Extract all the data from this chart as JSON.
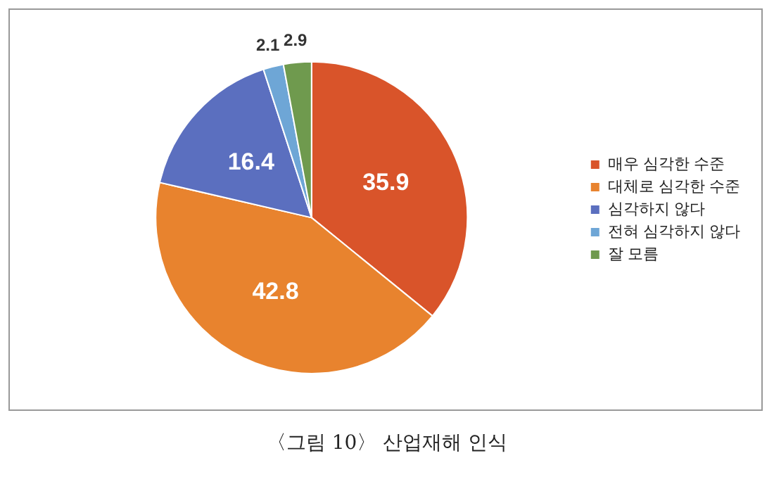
{
  "chart_data": {
    "type": "pie",
    "categories": [
      "매우 심각한 수준",
      "대체로 심각한 수준",
      "심각하지 않다",
      "전혀 심각하지 않다",
      "잘 모름"
    ],
    "values": [
      35.9,
      42.8,
      16.4,
      2.1,
      2.9
    ],
    "colors": [
      "#d9542a",
      "#e8832e",
      "#5b6fbf",
      "#6ea6d6",
      "#6f9a4e"
    ],
    "data_labels": true,
    "legend": "right",
    "annotations": [
      "〈그림 10〉 산업재해 인식"
    ]
  }
}
